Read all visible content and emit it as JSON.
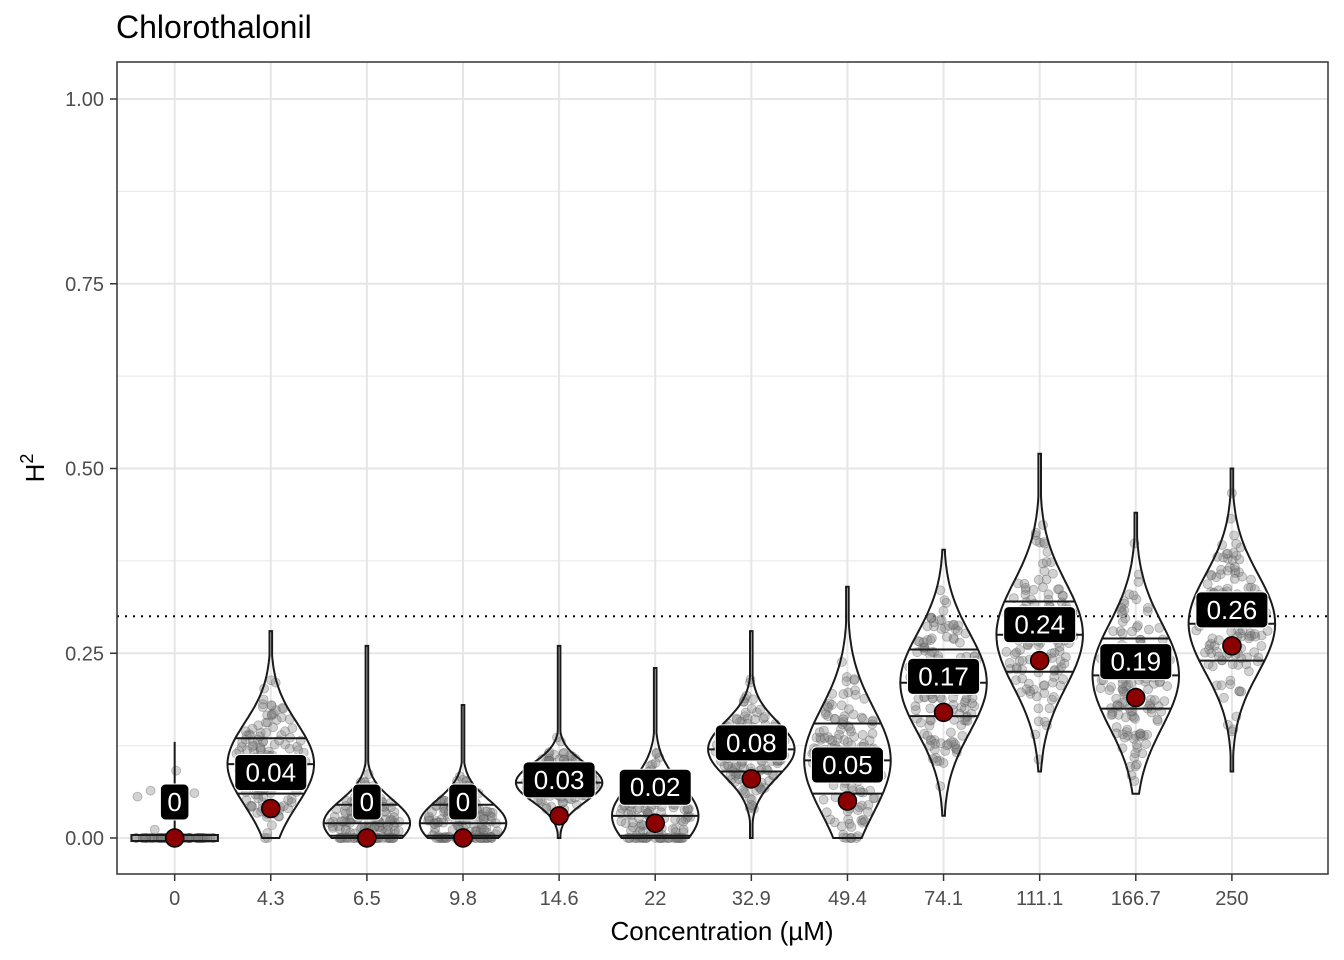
{
  "chart_data": {
    "type": "violin",
    "title": "Chlorothalonil",
    "xlabel": "Concentration (µM)",
    "ylabel_base": "H",
    "ylabel_sup": "2",
    "categories": [
      "0",
      "4.3",
      "6.5",
      "9.8",
      "14.6",
      "22",
      "32.9",
      "49.4",
      "74.1",
      "111.1",
      "166.7",
      "250"
    ],
    "point_estimates": [
      0,
      0.04,
      0,
      0,
      0.03,
      0.02,
      0.08,
      0.05,
      0.17,
      0.24,
      0.19,
      0.26
    ],
    "labels": [
      "0",
      "0.04",
      "0",
      "0",
      "0.03",
      "0.02",
      "0.08",
      "0.05",
      "0.17",
      "0.24",
      "0.19",
      "0.26"
    ],
    "ranges": [
      [
        0,
        0.13
      ],
      [
        0,
        0.28
      ],
      [
        0,
        0.26
      ],
      [
        0,
        0.18
      ],
      [
        0,
        0.26
      ],
      [
        0,
        0.23
      ],
      [
        0,
        0.28
      ],
      [
        0,
        0.34
      ],
      [
        0.03,
        0.39
      ],
      [
        0.09,
        0.52
      ],
      [
        0.06,
        0.44
      ],
      [
        0.09,
        0.5
      ]
    ],
    "quartiles": [
      [
        0,
        0,
        0
      ],
      [
        0.06,
        0.1,
        0.135
      ],
      [
        0.003,
        0.02,
        0.045
      ],
      [
        0.003,
        0.02,
        0.045
      ],
      [
        0.055,
        0.075,
        0.09
      ],
      [
        0.003,
        0.03,
        0.06
      ],
      [
        0.09,
        0.12,
        0.14
      ],
      [
        0.06,
        0.105,
        0.155
      ],
      [
        0.165,
        0.21,
        0.255
      ],
      [
        0.225,
        0.275,
        0.32
      ],
      [
        0.175,
        0.22,
        0.27
      ],
      [
        0.24,
        0.29,
        0.33
      ]
    ],
    "threshold": 0.3,
    "threshold_style": "dotted",
    "ylim": [
      -0.05,
      1.05
    ],
    "yticks": [
      0,
      0.25,
      0.5,
      0.75,
      1.0
    ],
    "ytick_labels": [
      "0.00",
      "0.25",
      "0.50",
      "0.75",
      "1.00"
    ],
    "point_color": "#8b0000",
    "label_bg": "#000000",
    "jitter_color": "#7f7f7f",
    "grid": true,
    "legend": "none"
  }
}
